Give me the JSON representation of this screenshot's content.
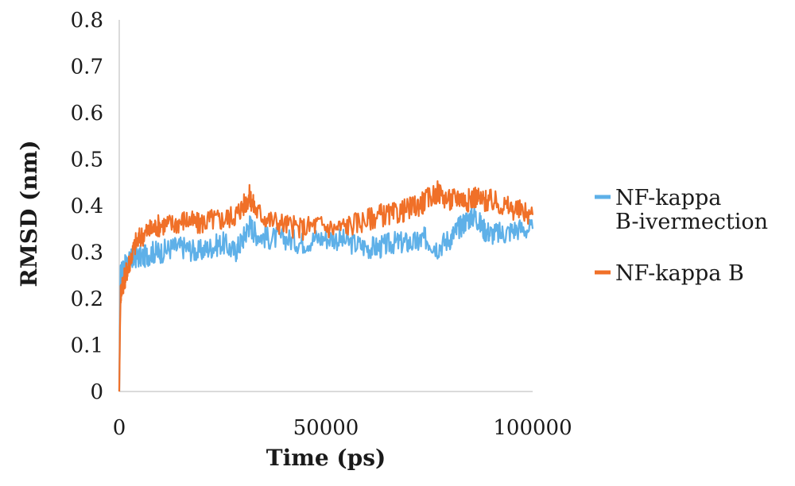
{
  "chart_data": {
    "type": "line",
    "xlabel": "Time (ps)",
    "ylabel": "RMSD (nm)",
    "xlim": [
      0,
      100000
    ],
    "ylim": [
      0,
      0.8
    ],
    "x_ticks": [
      "0",
      "50000",
      "100000"
    ],
    "y_ticks": [
      "0",
      "0.1",
      "0.2",
      "0.3",
      "0.4",
      "0.5",
      "0.6",
      "0.7",
      "0.8"
    ],
    "grid": false,
    "legend_position": "right",
    "series": [
      {
        "name": "NF-kappa B-ivermection",
        "legend_lines": [
          "NF-kappa",
          "B-ivermection"
        ],
        "color": "#5EB0E8",
        "x": [
          0,
          300,
          800,
          1500,
          2500,
          4000,
          6000,
          8000,
          10000,
          13000,
          16000,
          19000,
          22000,
          25000,
          28000,
          30000,
          31500,
          33000,
          36000,
          40000,
          44000,
          48000,
          52000,
          56000,
          60000,
          63000,
          66000,
          69000,
          72000,
          74000,
          77000,
          80000,
          82000,
          84000,
          86000,
          88000,
          90000,
          93000,
          96000,
          100000
        ],
        "y": [
          0.0,
          0.25,
          0.26,
          0.27,
          0.28,
          0.29,
          0.29,
          0.3,
          0.3,
          0.31,
          0.31,
          0.3,
          0.31,
          0.32,
          0.3,
          0.33,
          0.36,
          0.34,
          0.33,
          0.33,
          0.32,
          0.33,
          0.33,
          0.32,
          0.31,
          0.31,
          0.32,
          0.32,
          0.32,
          0.33,
          0.31,
          0.33,
          0.35,
          0.37,
          0.38,
          0.35,
          0.34,
          0.34,
          0.35,
          0.35
        ]
      },
      {
        "name": "NF-kappa B",
        "legend_lines": [
          "NF-kappa B"
        ],
        "color": "#F07028",
        "x": [
          0,
          300,
          800,
          1500,
          2500,
          4000,
          6000,
          8000,
          10000,
          13000,
          16000,
          19000,
          22000,
          25000,
          28000,
          30000,
          31500,
          33000,
          36000,
          40000,
          44000,
          48000,
          52000,
          56000,
          60000,
          63000,
          66000,
          69000,
          72000,
          74000,
          77000,
          80000,
          82000,
          84000,
          86000,
          88000,
          90000,
          93000,
          96000,
          100000
        ],
        "y": [
          0.0,
          0.21,
          0.23,
          0.25,
          0.28,
          0.32,
          0.34,
          0.35,
          0.36,
          0.36,
          0.37,
          0.36,
          0.37,
          0.37,
          0.38,
          0.4,
          0.42,
          0.39,
          0.37,
          0.36,
          0.35,
          0.36,
          0.35,
          0.36,
          0.37,
          0.38,
          0.38,
          0.39,
          0.4,
          0.41,
          0.43,
          0.41,
          0.42,
          0.41,
          0.42,
          0.41,
          0.41,
          0.4,
          0.39,
          0.38
        ]
      }
    ]
  }
}
